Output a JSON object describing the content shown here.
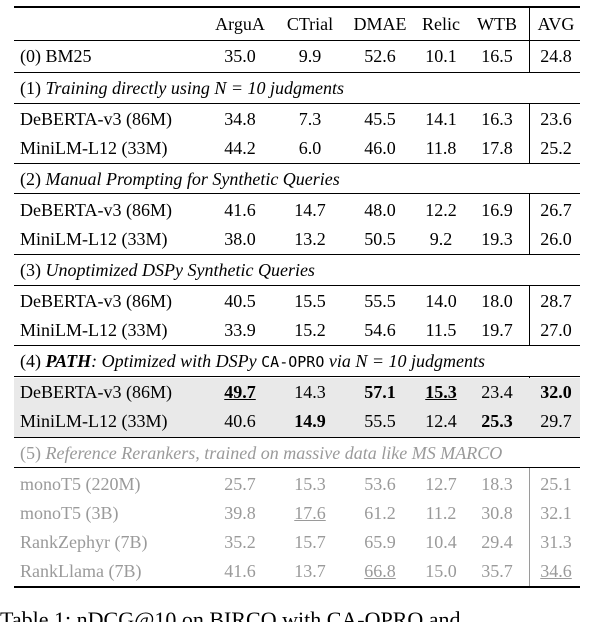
{
  "header": {
    "method": "",
    "cols": [
      "ArguA",
      "CTrial",
      "DMAE",
      "Relic",
      "WTB",
      "AVG"
    ]
  },
  "sections": [
    {
      "label": null,
      "rows": [
        {
          "method": "(0) BM25",
          "values": [
            "35.0",
            "9.9",
            "52.6",
            "10.1",
            "16.5",
            "24.8"
          ]
        }
      ]
    },
    {
      "idx": "(1)",
      "label": "Training directly using N = 10 judgments",
      "rows": [
        {
          "method": "DeBERTA-v3 (86M)",
          "values": [
            "34.8",
            "7.3",
            "45.5",
            "14.1",
            "16.3",
            "23.6"
          ]
        },
        {
          "method": "MiniLM-L12 (33M)",
          "values": [
            "44.2",
            "6.0",
            "46.0",
            "11.8",
            "17.8",
            "25.2"
          ]
        }
      ]
    },
    {
      "idx": "(2)",
      "label": "Manual Prompting for Synthetic Queries",
      "rows": [
        {
          "method": "DeBERTA-v3 (86M)",
          "values": [
            "41.6",
            "14.7",
            "48.0",
            "12.2",
            "16.9",
            "26.7"
          ]
        },
        {
          "method": "MiniLM-L12 (33M)",
          "values": [
            "38.0",
            "13.2",
            "50.5",
            "9.2",
            "19.3",
            "26.0"
          ]
        }
      ]
    },
    {
      "idx": "(3)",
      "label": "Unoptimized DSPy Synthetic Queries",
      "rows": [
        {
          "method": "DeBERTA-v3 (86M)",
          "values": [
            "40.5",
            "15.5",
            "55.5",
            "14.0",
            "18.0",
            "28.7"
          ]
        },
        {
          "method": "MiniLM-L12 (33M)",
          "values": [
            "33.9",
            "15.2",
            "54.6",
            "11.5",
            "19.7",
            "27.0"
          ]
        }
      ]
    },
    {
      "idx": "(4)",
      "label_bold": "PATH",
      "label_a": ": Optimized with DSPy ",
      "label_mono": "CA-OPRO",
      "label_b": " via N = 10 judgments",
      "rows": [
        {
          "method": "DeBERTA-v3 (86M)",
          "values": [
            "49.7",
            "14.3",
            "57.1",
            "15.3",
            "23.4",
            "32.0"
          ]
        },
        {
          "method": "MiniLM-L12 (33M)",
          "values": [
            "40.6",
            "14.9",
            "55.5",
            "12.4",
            "25.3",
            "29.7"
          ]
        }
      ]
    },
    {
      "idx": "(5)",
      "label": "Reference Rerankers, trained on massive data like MS MARCO",
      "rows": [
        {
          "method": "monoT5 (220M)",
          "values": [
            "25.7",
            "15.3",
            "53.6",
            "12.7",
            "18.3",
            "25.1"
          ]
        },
        {
          "method": "monoT5 (3B)",
          "values": [
            "39.8",
            "17.6",
            "61.2",
            "11.2",
            "30.8",
            "32.1"
          ]
        },
        {
          "method": "RankZephyr (7B)",
          "values": [
            "35.2",
            "15.7",
            "65.9",
            "10.4",
            "29.4",
            "31.3"
          ]
        },
        {
          "method": "RankLlama (7B)",
          "values": [
            "41.6",
            "13.7",
            "66.8",
            "15.0",
            "35.7",
            "34.6"
          ]
        }
      ]
    }
  ],
  "caption": "Table 1: nDCG@10 on BIRCO with CA-OPRO and"
}
